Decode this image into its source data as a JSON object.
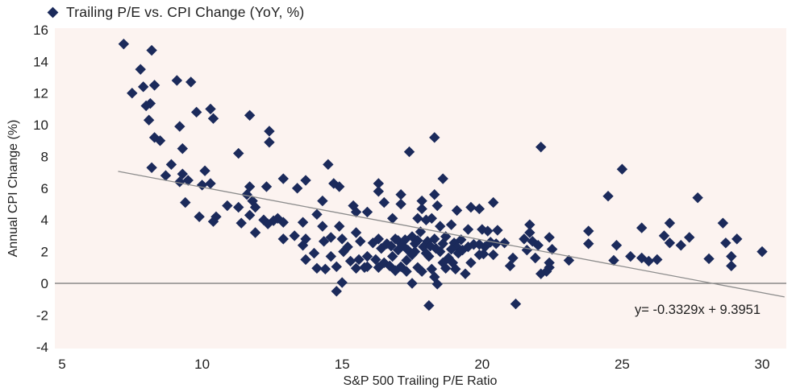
{
  "legend": {
    "label": "Trailing P/E vs. CPI Change (YoY, %)"
  },
  "axes": {
    "x_label": "S&P 500 Trailing P/E Ratio",
    "y_label": "Annual CPI Change (%)"
  },
  "annotation": {
    "trendline_equation": "y= -0.3329x + 9.3951"
  },
  "colors": {
    "marker": "#1b2a5b",
    "plot_background": "#fcf3f0",
    "page_background": "#ffffff",
    "text": "#1f1f1f",
    "zero_line": "#737373",
    "trend_line": "#8c8c8c"
  },
  "chart_data": {
    "type": "scatter",
    "title": "Trailing P/E vs. CPI Change (YoY, %)",
    "xlabel": "S&P 500 Trailing P/E Ratio",
    "ylabel": "Annual CPI Change (%)",
    "xlim": [
      4.7,
      30.9
    ],
    "ylim": [
      -4,
      16
    ],
    "x_ticks": [
      5,
      10,
      15,
      20,
      25,
      30
    ],
    "y_ticks": [
      16,
      14,
      12,
      10,
      8,
      6,
      4,
      2,
      0,
      -2,
      -4
    ],
    "grid": false,
    "zero_line": true,
    "legend_position": "top-left",
    "marker": {
      "shape": "diamond",
      "color": "#1b2a5b"
    },
    "trendline": {
      "slope": -0.3329,
      "intercept": 9.3951,
      "equation": "y= -0.3329x + 9.3951",
      "x_start": 7.0,
      "x_end": 30.8,
      "color": "#8c8c8c"
    },
    "points": [
      [
        7.2,
        15.1
      ],
      [
        8.2,
        14.7
      ],
      [
        7.8,
        13.5
      ],
      [
        9.1,
        12.8
      ],
      [
        9.6,
        12.7
      ],
      [
        7.5,
        12.0
      ],
      [
        7.9,
        12.4
      ],
      [
        8.3,
        12.5
      ],
      [
        8.0,
        11.2
      ],
      [
        8.15,
        11.35
      ],
      [
        8.1,
        10.3
      ],
      [
        9.2,
        9.9
      ],
      [
        8.3,
        9.2
      ],
      [
        8.5,
        9.0
      ],
      [
        9.3,
        8.5
      ],
      [
        9.8,
        10.8
      ],
      [
        10.3,
        11.0
      ],
      [
        10.4,
        10.4
      ],
      [
        11.7,
        10.6
      ],
      [
        12.4,
        9.6
      ],
      [
        12.4,
        8.9
      ],
      [
        11.3,
        8.2
      ],
      [
        8.2,
        7.3
      ],
      [
        8.9,
        7.5
      ],
      [
        8.7,
        6.8
      ],
      [
        9.3,
        6.9
      ],
      [
        10.1,
        7.1
      ],
      [
        9.2,
        6.4
      ],
      [
        9.5,
        6.5
      ],
      [
        10.0,
        6.2
      ],
      [
        10.3,
        6.3
      ],
      [
        12.9,
        6.6
      ],
      [
        13.4,
        6.0
      ],
      [
        13.7,
        6.5
      ],
      [
        11.7,
        6.1
      ],
      [
        12.3,
        6.1
      ],
      [
        9.4,
        5.1
      ],
      [
        11.6,
        5.6
      ],
      [
        10.9,
        4.9
      ],
      [
        11.3,
        4.8
      ],
      [
        11.8,
        5.2
      ],
      [
        11.9,
        4.8
      ],
      [
        9.9,
        4.2
      ],
      [
        10.4,
        3.9
      ],
      [
        10.5,
        4.2
      ],
      [
        11.7,
        4.3
      ],
      [
        11.4,
        3.8
      ],
      [
        12.2,
        4.0
      ],
      [
        12.35,
        3.75
      ],
      [
        12.55,
        3.95
      ],
      [
        12.7,
        4.1
      ],
      [
        12.9,
        3.85
      ],
      [
        11.9,
        3.2
      ],
      [
        12.9,
        2.8
      ],
      [
        13.3,
        3.0
      ],
      [
        13.6,
        3.85
      ],
      [
        13.6,
        2.4
      ],
      [
        13.7,
        1.5
      ],
      [
        18.3,
        9.2
      ],
      [
        17.4,
        8.3
      ],
      [
        22.1,
        8.6
      ],
      [
        14.5,
        7.5
      ],
      [
        18.6,
        6.6
      ],
      [
        14.7,
        6.3
      ],
      [
        16.3,
        6.3
      ],
      [
        25.0,
        7.2
      ],
      [
        14.9,
        6.1
      ],
      [
        16.3,
        5.8
      ],
      [
        17.1,
        5.6
      ],
      [
        18.3,
        5.6
      ],
      [
        14.3,
        5.2
      ],
      [
        15.4,
        4.9
      ],
      [
        16.5,
        5.1
      ],
      [
        17.1,
        5.0
      ],
      [
        17.85,
        5.2
      ],
      [
        17.85,
        4.7
      ],
      [
        18.4,
        4.9
      ],
      [
        19.1,
        4.6
      ],
      [
        19.6,
        4.8
      ],
      [
        14.1,
        4.35
      ],
      [
        14.3,
        3.6
      ],
      [
        14.9,
        3.6
      ],
      [
        15.5,
        4.5
      ],
      [
        15.9,
        4.5
      ],
      [
        16.8,
        4.1
      ],
      [
        17.7,
        4.1
      ],
      [
        18.0,
        4.0
      ],
      [
        18.2,
        4.1
      ],
      [
        18.5,
        3.6
      ],
      [
        18.9,
        3.7
      ],
      [
        19.5,
        3.4
      ],
      [
        19.9,
        4.7
      ],
      [
        20.0,
        3.4
      ],
      [
        13.7,
        2.8
      ],
      [
        14.35,
        2.65
      ],
      [
        14.6,
        2.9
      ],
      [
        15.0,
        2.8
      ],
      [
        15.2,
        2.3
      ],
      [
        15.5,
        3.2
      ],
      [
        15.65,
        2.65
      ],
      [
        16.1,
        2.55
      ],
      [
        16.3,
        2.8
      ],
      [
        16.6,
        2.5
      ],
      [
        16.9,
        2.8
      ],
      [
        17.0,
        2.7
      ],
      [
        17.25,
        2.75
      ],
      [
        17.5,
        2.95
      ],
      [
        17.7,
        2.7
      ],
      [
        17.8,
        3.25
      ],
      [
        18.05,
        2.65
      ],
      [
        18.3,
        2.8
      ],
      [
        18.7,
        2.95
      ],
      [
        19.0,
        2.55
      ],
      [
        19.25,
        2.75
      ],
      [
        19.5,
        2.3
      ],
      [
        19.7,
        2.45
      ],
      [
        19.9,
        2.45
      ],
      [
        16.4,
        2.2
      ],
      [
        16.75,
        2.35
      ],
      [
        17.15,
        2.4
      ],
      [
        17.35,
        2.1
      ],
      [
        17.6,
        2.5
      ],
      [
        17.9,
        2.3
      ],
      [
        18.15,
        2.35
      ],
      [
        18.35,
        2.2
      ],
      [
        18.6,
        2.5
      ],
      [
        19.1,
        2.3
      ],
      [
        20.3,
        2.6
      ],
      [
        20.1,
        2.3
      ],
      [
        14.0,
        1.9
      ],
      [
        14.6,
        1.7
      ],
      [
        15.05,
        2.0
      ],
      [
        15.3,
        1.4
      ],
      [
        15.6,
        1.5
      ],
      [
        15.9,
        1.7
      ],
      [
        16.2,
        1.5
      ],
      [
        16.5,
        1.3
      ],
      [
        16.8,
        1.7
      ],
      [
        17.3,
        1.45
      ],
      [
        17.6,
        2.0
      ],
      [
        18.1,
        1.7
      ],
      [
        18.9,
        2.15
      ],
      [
        19.15,
        1.9
      ],
      [
        19.9,
        1.8
      ],
      [
        17.0,
        2.1
      ],
      [
        18.5,
        2.0
      ],
      [
        18.8,
        1.6
      ],
      [
        19.3,
        2.1
      ],
      [
        17.5,
        1.8
      ],
      [
        18.0,
        1.9
      ],
      [
        15.9,
        1.05
      ],
      [
        17.1,
        1.05
      ],
      [
        17.85,
        0.75
      ],
      [
        14.1,
        0.95
      ],
      [
        14.4,
        0.9
      ],
      [
        14.8,
        1.05
      ],
      [
        15.5,
        0.95
      ],
      [
        15.8,
        1.0
      ],
      [
        16.3,
        1.0
      ],
      [
        16.7,
        1.1
      ],
      [
        17.7,
        1.0
      ],
      [
        18.2,
        0.9
      ],
      [
        18.7,
        0.95
      ],
      [
        19.05,
        0.9
      ],
      [
        19.4,
        0.6
      ],
      [
        16.9,
        0.8
      ],
      [
        17.3,
        0.75
      ],
      [
        18.6,
        1.3
      ],
      [
        18.95,
        1.3
      ],
      [
        19.6,
        1.3
      ],
      [
        14.8,
        -0.5
      ],
      [
        15.0,
        0.05
      ],
      [
        17.5,
        0.0
      ],
      [
        18.4,
        -0.05
      ],
      [
        18.3,
        0.4
      ],
      [
        18.1,
        -1.4
      ],
      [
        21.2,
        -1.3
      ],
      [
        24.5,
        5.5
      ],
      [
        20.4,
        5.1
      ],
      [
        21.7,
        3.7
      ],
      [
        20.2,
        3.3
      ],
      [
        20.55,
        3.35
      ],
      [
        20.8,
        2.55
      ],
      [
        20.5,
        2.5
      ],
      [
        21.5,
        2.8
      ],
      [
        21.7,
        3.2
      ],
      [
        21.8,
        2.65
      ],
      [
        22.0,
        2.4
      ],
      [
        22.4,
        2.9
      ],
      [
        22.5,
        2.15
      ],
      [
        23.8,
        3.3
      ],
      [
        23.8,
        2.5
      ],
      [
        24.8,
        2.4
      ],
      [
        20.4,
        1.8
      ],
      [
        21.1,
        1.6
      ],
      [
        21.6,
        2.1
      ],
      [
        21.9,
        1.6
      ],
      [
        22.4,
        1.3
      ],
      [
        23.1,
        1.45
      ],
      [
        24.7,
        1.45
      ],
      [
        25.3,
        1.7
      ],
      [
        20.05,
        1.85
      ],
      [
        21.0,
        1.1
      ],
      [
        22.3,
        0.75
      ],
      [
        22.1,
        0.6
      ],
      [
        22.4,
        1.0
      ],
      [
        25.7,
        3.5
      ],
      [
        27.7,
        5.4
      ],
      [
        26.7,
        3.8
      ],
      [
        26.5,
        3.0
      ],
      [
        26.7,
        2.55
      ],
      [
        27.1,
        2.4
      ],
      [
        27.4,
        2.9
      ],
      [
        28.6,
        3.8
      ],
      [
        28.7,
        2.55
      ],
      [
        29.1,
        2.8
      ],
      [
        28.1,
        1.55
      ],
      [
        28.9,
        1.7
      ],
      [
        28.9,
        1.1
      ],
      [
        30.0,
        2.0
      ],
      [
        25.7,
        1.6
      ],
      [
        25.95,
        1.4
      ],
      [
        26.25,
        1.5
      ]
    ]
  }
}
